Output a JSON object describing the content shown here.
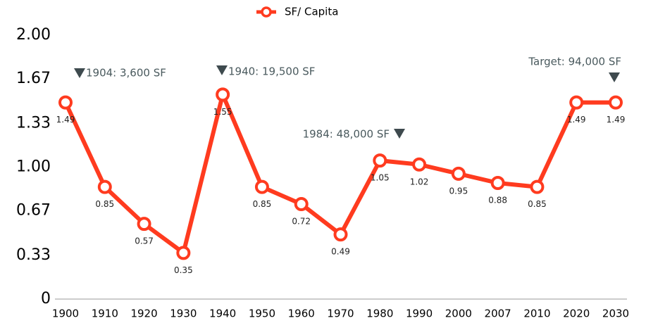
{
  "chart_data": {
    "type": "line",
    "categories": [
      "1900",
      "1910",
      "1920",
      "1930",
      "1940",
      "1950",
      "1960",
      "1970",
      "1980",
      "1990",
      "2000",
      "2007",
      "2010",
      "2020",
      "2030"
    ],
    "series": [
      {
        "name": "SF/ Capita",
        "color": "#ff3b1f",
        "values": [
          1.49,
          0.85,
          0.57,
          0.35,
          1.55,
          0.85,
          0.72,
          0.49,
          1.05,
          1.02,
          0.95,
          0.88,
          0.85,
          1.49,
          1.49
        ]
      }
    ],
    "ylim": [
      0,
      2
    ],
    "yticks": [
      0,
      0.33,
      0.67,
      {
        "value": 1,
        "label": "1.00"
      },
      1.33,
      1.67,
      {
        "value": 2,
        "label": "2.00"
      }
    ],
    "grid": false,
    "legend": "top",
    "annotations": [
      "1904: 3,600 SF",
      "1940: 19,500 SF",
      "1984: 48,000 SF",
      "Target: 94,000 SF"
    ]
  }
}
